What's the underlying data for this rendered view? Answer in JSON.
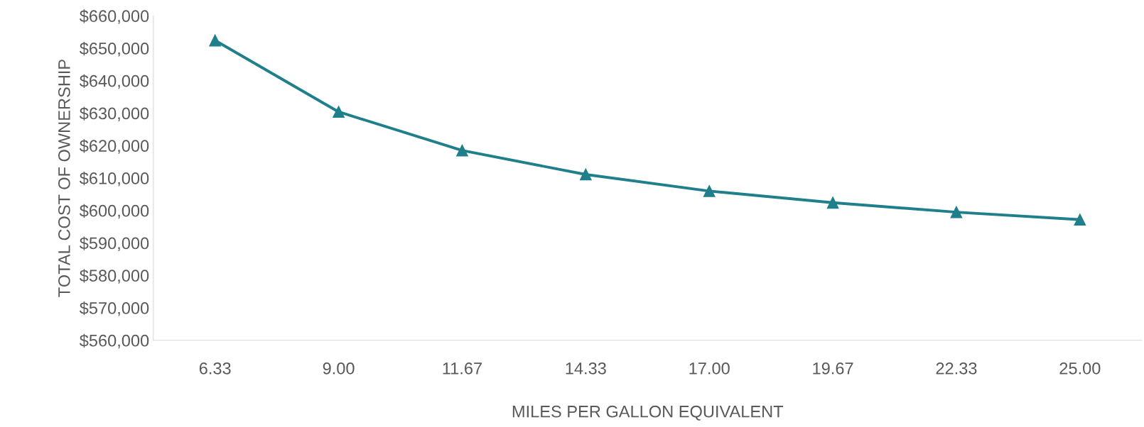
{
  "chart_data": {
    "type": "line",
    "xlabel": "MILES PER GALLON EQUIVALENT",
    "ylabel": "TOTAL COST OF OWNERSHIP",
    "categories": [
      "6.33",
      "9.00",
      "11.67",
      "14.33",
      "17.00",
      "19.67",
      "22.33",
      "25.00"
    ],
    "series": [
      {
        "color": "#1f7f8a",
        "values": [
          652400,
          630400,
          618500,
          611100,
          606000,
          602400,
          599500,
          597200
        ]
      }
    ],
    "ylim": [
      560000,
      660000
    ],
    "yticks": [
      {
        "value": 560000,
        "label": "$560,000"
      },
      {
        "value": 570000,
        "label": "$570,000"
      },
      {
        "value": 580000,
        "label": "$580,000"
      },
      {
        "value": 590000,
        "label": "$590,000"
      },
      {
        "value": 600000,
        "label": "$600,000"
      },
      {
        "value": 610000,
        "label": "$610,000"
      },
      {
        "value": 620000,
        "label": "$620,000"
      },
      {
        "value": 630000,
        "label": "$630,000"
      },
      {
        "value": 640000,
        "label": "$640,000"
      },
      {
        "value": 650000,
        "label": "$650,000"
      },
      {
        "value": 660000,
        "label": "$660,000"
      }
    ],
    "marker": "triangle",
    "grid": false
  }
}
